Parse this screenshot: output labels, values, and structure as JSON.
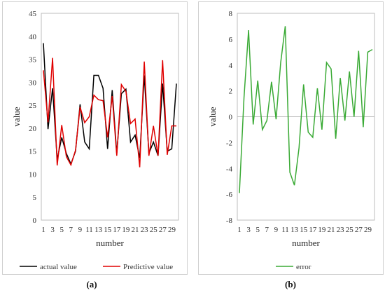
{
  "chart_data": [
    {
      "type": "line",
      "panel": "(a)",
      "xlabel": "number",
      "ylabel": "value",
      "ylim": [
        0,
        45
      ],
      "yticks": [
        0,
        5,
        10,
        15,
        20,
        25,
        30,
        35,
        40,
        45
      ],
      "x": [
        1,
        2,
        3,
        4,
        5,
        6,
        7,
        8,
        9,
        10,
        11,
        12,
        13,
        14,
        15,
        16,
        17,
        18,
        19,
        20,
        21,
        22,
        23,
        24,
        25,
        26,
        27,
        28,
        29,
        30
      ],
      "x_tick_labels": [
        "1",
        "3",
        "5",
        "7",
        "9",
        "11",
        "13",
        "15",
        "17",
        "19",
        "21",
        "23",
        "25",
        "27",
        "29"
      ],
      "legend_position": "bottom",
      "series": [
        {
          "name": "actual value",
          "color": "#000000",
          "values": [
            38.5,
            19.8,
            28.7,
            13.2,
            18.0,
            14.5,
            12.2,
            15.0,
            25.2,
            17.0,
            15.5,
            31.5,
            31.5,
            28.7,
            15.5,
            28.3,
            14.5,
            27.5,
            28.5,
            17.0,
            18.5,
            13.5,
            31.5,
            14.5,
            17.0,
            14.0,
            29.7,
            15.0,
            15.5,
            29.7
          ]
        },
        {
          "name": "Predictive value",
          "color": "#e00000",
          "values": [
            32.6,
            21.3,
            35.3,
            11.9,
            20.7,
            13.8,
            12.0,
            15.2,
            24.6,
            21.2,
            22.5,
            27.2,
            26.2,
            26.0,
            18.0,
            27.0,
            14.0,
            29.5,
            28.0,
            21.0,
            22.0,
            11.5,
            34.5,
            14.0,
            20.5,
            14.0,
            34.8,
            14.2,
            20.5,
            20.5
          ]
        }
      ]
    },
    {
      "type": "line",
      "panel": "(b)",
      "xlabel": "number",
      "ylabel": "value",
      "ylim": [
        -8,
        8
      ],
      "yticks": [
        -8,
        -6,
        -4,
        -2,
        0,
        2,
        4,
        6,
        8
      ],
      "x": [
        1,
        2,
        3,
        4,
        5,
        6,
        7,
        8,
        9,
        10,
        11,
        12,
        13,
        14,
        15,
        16,
        17,
        18,
        19,
        20,
        21,
        22,
        23,
        24,
        25,
        26,
        27,
        28,
        29,
        30
      ],
      "x_tick_labels": [
        "1",
        "3",
        "5",
        "7",
        "9",
        "11",
        "13",
        "15",
        "17",
        "19",
        "21",
        "23",
        "25",
        "27",
        "29"
      ],
      "legend_position": "bottom",
      "series": [
        {
          "name": "error",
          "color": "#3aaa35",
          "values": [
            -5.9,
            1.5,
            6.7,
            -0.6,
            2.8,
            -1.0,
            -0.3,
            2.7,
            -0.2,
            4.2,
            7.0,
            -4.3,
            -5.3,
            -2.4,
            2.5,
            -1.2,
            -1.6,
            2.2,
            -1.0,
            4.2,
            3.7,
            -1.7,
            3.0,
            -0.3,
            3.5,
            0.0,
            5.1,
            -0.8,
            5.0,
            5.2
          ]
        }
      ]
    }
  ],
  "captions": {
    "a": "(a)",
    "b": "(b)"
  }
}
